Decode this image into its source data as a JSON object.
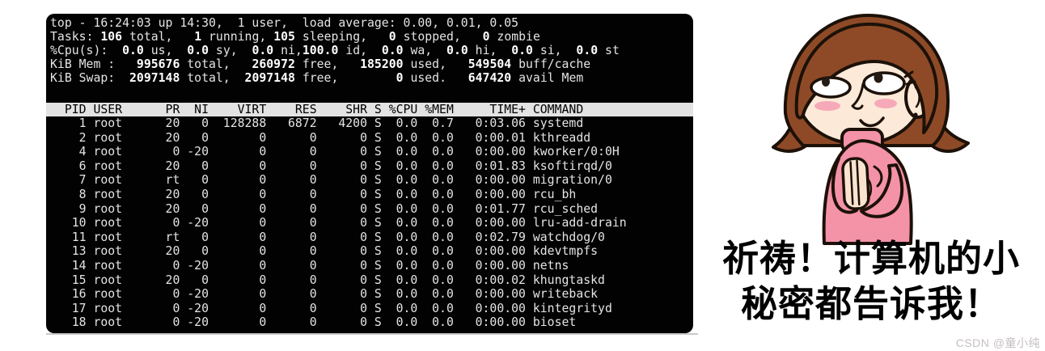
{
  "terminal": {
    "summary_lines": [
      {
        "segments": [
          {
            "t": "top - 16:24:03 up 14:30,  1 user,  load average: 0.00, 0.01, 0.05",
            "b": false
          }
        ]
      },
      {
        "segments": [
          {
            "t": "Tasks: ",
            "b": false
          },
          {
            "t": "106",
            "b": true
          },
          {
            "t": " total,   ",
            "b": false
          },
          {
            "t": "1",
            "b": true
          },
          {
            "t": " running, ",
            "b": false
          },
          {
            "t": "105",
            "b": true
          },
          {
            "t": " sleeping,   ",
            "b": false
          },
          {
            "t": "0",
            "b": true
          },
          {
            "t": " stopped,   ",
            "b": false
          },
          {
            "t": "0",
            "b": true
          },
          {
            "t": " zombie",
            "b": false
          }
        ]
      },
      {
        "segments": [
          {
            "t": "%Cpu(s):  ",
            "b": false
          },
          {
            "t": "0.0",
            "b": true
          },
          {
            "t": " us,  ",
            "b": false
          },
          {
            "t": "0.0",
            "b": true
          },
          {
            "t": " sy,  ",
            "b": false
          },
          {
            "t": "0.0",
            "b": true
          },
          {
            "t": " ni,",
            "b": false
          },
          {
            "t": "100.0",
            "b": true
          },
          {
            "t": " id,  ",
            "b": false
          },
          {
            "t": "0.0",
            "b": true
          },
          {
            "t": " wa,  ",
            "b": false
          },
          {
            "t": "0.0",
            "b": true
          },
          {
            "t": " hi,  ",
            "b": false
          },
          {
            "t": "0.0",
            "b": true
          },
          {
            "t": " si,  ",
            "b": false
          },
          {
            "t": "0.0",
            "b": true
          },
          {
            "t": " st",
            "b": false
          }
        ]
      },
      {
        "segments": [
          {
            "t": "KiB Mem :   ",
            "b": false
          },
          {
            "t": "995676",
            "b": true
          },
          {
            "t": " total,   ",
            "b": false
          },
          {
            "t": "260972",
            "b": true
          },
          {
            "t": " free,   ",
            "b": false
          },
          {
            "t": "185200",
            "b": true
          },
          {
            "t": " used,   ",
            "b": false
          },
          {
            "t": "549504",
            "b": true
          },
          {
            "t": " buff/cache",
            "b": false
          }
        ]
      },
      {
        "segments": [
          {
            "t": "KiB Swap:  ",
            "b": false
          },
          {
            "t": "2097148",
            "b": true
          },
          {
            "t": " total,  ",
            "b": false
          },
          {
            "t": "2097148",
            "b": true
          },
          {
            "t": " free,        ",
            "b": false
          },
          {
            "t": "0",
            "b": true
          },
          {
            "t": " used.   ",
            "b": false
          },
          {
            "t": "647420",
            "b": true
          },
          {
            "t": " avail Mem",
            "b": false
          }
        ]
      }
    ],
    "table": {
      "columns": [
        "PID",
        "USER",
        "PR",
        "NI",
        "VIRT",
        "RES",
        "SHR",
        "S",
        "%CPU",
        "%MEM",
        "TIME+",
        "COMMAND"
      ],
      "rows": [
        [
          "1",
          "root",
          "20",
          "0",
          "128288",
          "6872",
          "4200",
          "S",
          "0.0",
          "0.7",
          "0:03.06",
          "systemd"
        ],
        [
          "2",
          "root",
          "20",
          "0",
          "0",
          "0",
          "0",
          "S",
          "0.0",
          "0.0",
          "0:00.01",
          "kthreadd"
        ],
        [
          "4",
          "root",
          "0",
          "-20",
          "0",
          "0",
          "0",
          "S",
          "0.0",
          "0.0",
          "0:00.00",
          "kworker/0:0H"
        ],
        [
          "6",
          "root",
          "20",
          "0",
          "0",
          "0",
          "0",
          "S",
          "0.0",
          "0.0",
          "0:01.83",
          "ksoftirqd/0"
        ],
        [
          "7",
          "root",
          "rt",
          "0",
          "0",
          "0",
          "0",
          "S",
          "0.0",
          "0.0",
          "0:00.00",
          "migration/0"
        ],
        [
          "8",
          "root",
          "20",
          "0",
          "0",
          "0",
          "0",
          "S",
          "0.0",
          "0.0",
          "0:00.00",
          "rcu_bh"
        ],
        [
          "9",
          "root",
          "20",
          "0",
          "0",
          "0",
          "0",
          "S",
          "0.0",
          "0.0",
          "0:01.77",
          "rcu_sched"
        ],
        [
          "10",
          "root",
          "0",
          "-20",
          "0",
          "0",
          "0",
          "S",
          "0.0",
          "0.0",
          "0:00.00",
          "lru-add-drain"
        ],
        [
          "11",
          "root",
          "rt",
          "0",
          "0",
          "0",
          "0",
          "S",
          "0.0",
          "0.0",
          "0:02.79",
          "watchdog/0"
        ],
        [
          "13",
          "root",
          "20",
          "0",
          "0",
          "0",
          "0",
          "S",
          "0.0",
          "0.0",
          "0:00.00",
          "kdevtmpfs"
        ],
        [
          "14",
          "root",
          "0",
          "-20",
          "0",
          "0",
          "0",
          "S",
          "0.0",
          "0.0",
          "0:00.00",
          "netns"
        ],
        [
          "15",
          "root",
          "20",
          "0",
          "0",
          "0",
          "0",
          "S",
          "0.0",
          "0.0",
          "0:00.02",
          "khungtaskd"
        ],
        [
          "16",
          "root",
          "0",
          "-20",
          "0",
          "0",
          "0",
          "S",
          "0.0",
          "0.0",
          "0:00.00",
          "writeback"
        ],
        [
          "17",
          "root",
          "0",
          "-20",
          "0",
          "0",
          "0",
          "S",
          "0.0",
          "0.0",
          "0:00.00",
          "kintegrityd"
        ],
        [
          "18",
          "root",
          "0",
          "-20",
          "0",
          "0",
          "0",
          "S",
          "0.0",
          "0.0",
          "0:00.00",
          "bioset"
        ]
      ]
    }
  },
  "right_panel": {
    "caption_line1": "祈祷！计算机的小",
    "caption_line2": "秘密都告诉我！",
    "watermark": "CSDN @童小纯"
  },
  "colors": {
    "terminal_bg": "#020202",
    "terminal_fg": "#e4e4e4",
    "terminal_bold_fg": "#ffffff",
    "table_header_bg": "#e3e3e3",
    "table_header_fg": "#000000",
    "caption_fg": "#000000",
    "watermark_fg": "#c6bfc1",
    "hair": "#8e4a27",
    "skin": "#fce9d8",
    "dress": "#f492a8",
    "blush": "#f6a9b8",
    "outline": "#1c1108"
  }
}
